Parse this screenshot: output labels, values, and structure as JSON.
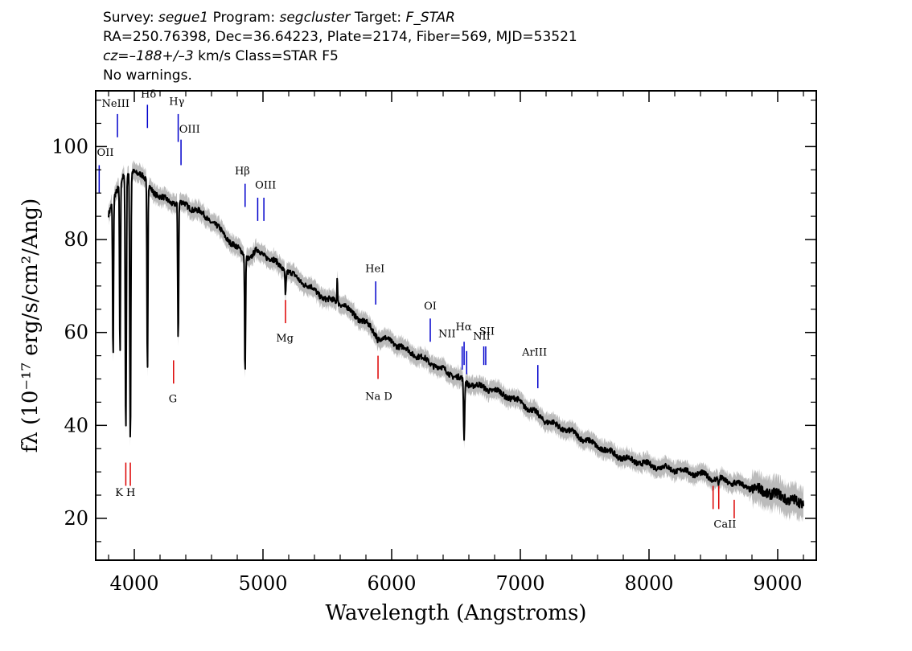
{
  "header": {
    "line1": {
      "survey_label": "Survey:",
      "survey": "segue1",
      "program_label": "Program:",
      "program": "segcluster",
      "target_label": "Target:",
      "target": "F_STAR"
    },
    "line2": "RA=250.76398, Dec=36.64223, Plate=2174, Fiber=569, MJD=53521",
    "line3": {
      "cz": "cz=–188+/–3",
      "rest": " km/s Class=STAR F5"
    },
    "line4": "No warnings."
  },
  "chart_data": {
    "type": "line",
    "title": "",
    "xlabel": "Wavelength (Angstroms)",
    "ylabel": "fλ (10⁻¹⁷ erg/s/cm²/Ang)",
    "xlim": [
      3700,
      9300
    ],
    "ylim": [
      11,
      112
    ],
    "x_ticks": [
      4000,
      5000,
      6000,
      7000,
      8000,
      9000
    ],
    "y_ticks": [
      20,
      40,
      60,
      80,
      100
    ],
    "grid": false,
    "colors": {
      "spectrum": "#000000",
      "error_band": "#bbbbbb",
      "emission": "#0000cc",
      "absorption": "#dd0000"
    },
    "continuum": {
      "x": [
        3800,
        3850,
        3900,
        3950,
        4000,
        4050,
        4100,
        4200,
        4300,
        4400,
        4500,
        4600,
        4700,
        4800,
        4850,
        4900,
        4950,
        5000,
        5100,
        5200,
        5300,
        5400,
        5500,
        5600,
        5700,
        5800,
        5900,
        6000,
        6200,
        6400,
        6600,
        6800,
        7000,
        7200,
        7400,
        7600,
        7800,
        8000,
        8200,
        8400,
        8600,
        8800,
        9000,
        9200
      ],
      "y": [
        85,
        90,
        93,
        94,
        95,
        94,
        92,
        89,
        88,
        87.5,
        86,
        84,
        81,
        78,
        77,
        76,
        77.5,
        77,
        75,
        73,
        71,
        69,
        67,
        66.5,
        64,
        62,
        59,
        58,
        55,
        52,
        49,
        47.5,
        45,
        41,
        38.5,
        35.5,
        33,
        31.5,
        30.5,
        29.5,
        28,
        26.5,
        25,
        23
      ]
    },
    "absorption_features": [
      {
        "x": 3835,
        "y": 54
      },
      {
        "x": 3889,
        "y": 55
      },
      {
        "x": 3934,
        "y": 38
      },
      {
        "x": 3969,
        "y": 36
      },
      {
        "x": 4102,
        "y": 51
      },
      {
        "x": 4341,
        "y": 58
      },
      {
        "x": 4861,
        "y": 51
      },
      {
        "x": 5175,
        "y": 68
      },
      {
        "x": 5890,
        "y": 58
      },
      {
        "x": 6563,
        "y": 37
      },
      {
        "x": 8498,
        "y": 28
      },
      {
        "x": 8542,
        "y": 27
      },
      {
        "x": 8662,
        "y": 28
      }
    ],
    "spikes": [
      {
        "x": 5577,
        "y": 73
      }
    ],
    "emission_lines": [
      {
        "label": "OII",
        "x": 3727,
        "y0": 90,
        "y1": 96
      },
      {
        "label": "NeIII",
        "x": 3869,
        "y0": 102,
        "y1": 107
      },
      {
        "label": "Hδ",
        "x": 4102,
        "y0": 104,
        "y1": 109
      },
      {
        "label": "Hγ",
        "x": 4341,
        "y0": 101,
        "y1": 107
      },
      {
        "label": "OIII",
        "x": 4363,
        "y0": 96,
        "y1": 101.5
      },
      {
        "label": "Hβ",
        "x": 4861,
        "y0": 87,
        "y1": 92
      },
      {
        "label": "OIII",
        "x": 4959,
        "y0": 84,
        "y1": 89
      },
      {
        "label": "OIII",
        "x": 5007,
        "y0": 84,
        "y1": 89
      },
      {
        "label": "HeI",
        "x": 5876,
        "y0": 66,
        "y1": 71
      },
      {
        "label": "OI",
        "x": 6300,
        "y0": 58,
        "y1": 63
      },
      {
        "label": "NII",
        "x": 6548,
        "y0": 52,
        "y1": 57
      },
      {
        "label": "Hα",
        "x": 6563,
        "y0": 53,
        "y1": 58
      },
      {
        "label": "NII",
        "x": 6583,
        "y0": 51,
        "y1": 56
      },
      {
        "label": "SII",
        "x": 6716,
        "y0": 53,
        "y1": 57
      },
      {
        "label": "SII",
        "x": 6731,
        "y0": 53,
        "y1": 57
      },
      {
        "label": "ArIII",
        "x": 7136,
        "y0": 48,
        "y1": 53
      }
    ],
    "absorption_lines": [
      {
        "label": "K",
        "x": 3934,
        "y0": 27,
        "y1": 32
      },
      {
        "label": "H",
        "x": 3969,
        "y0": 27,
        "y1": 32
      },
      {
        "label": "G",
        "x": 4305,
        "y0": 49,
        "y1": 54
      },
      {
        "label": "Mg",
        "x": 5175,
        "y0": 62,
        "y1": 67
      },
      {
        "label": "Na D",
        "x": 5894,
        "y0": 50,
        "y1": 55
      },
      {
        "label": "CaII",
        "x": 8498,
        "y0": 22,
        "y1": 27
      },
      {
        "label": "CaII",
        "x": 8542,
        "y0": 22,
        "y1": 27
      },
      {
        "label": "CaII",
        "x": 8662,
        "y0": 20,
        "y1": 24
      }
    ],
    "line_labels": [
      {
        "text": "OII",
        "x": 3727,
        "y": 98
      },
      {
        "text": "NeIII",
        "x": 3855,
        "y": 108.5
      },
      {
        "text": "Hδ",
        "x": 4110,
        "y": 110.5
      },
      {
        "text": "Hγ",
        "x": 4330,
        "y": 109
      },
      {
        "text": "OIII",
        "x": 4430,
        "y": 103
      },
      {
        "text": "Hβ",
        "x": 4840,
        "y": 94
      },
      {
        "text": "OIII",
        "x": 5020,
        "y": 91
      },
      {
        "text": "HeI",
        "x": 5870,
        "y": 73
      },
      {
        "text": "OI",
        "x": 6300,
        "y": 65
      },
      {
        "text": "NII",
        "x": 6430,
        "y": 59
      },
      {
        "text": "Hα",
        "x": 6560,
        "y": 60.5
      },
      {
        "text": "NII",
        "x": 6700,
        "y": 58.5
      },
      {
        "text": "SII",
        "x": 6740,
        "y": 59.5
      },
      {
        "text": "ArIII",
        "x": 7110,
        "y": 55
      },
      {
        "text": "Mg",
        "x": 5170,
        "y": 58
      },
      {
        "text": "Na  D",
        "x": 5900,
        "y": 45.5
      },
      {
        "text": "G",
        "x": 4300,
        "y": 45
      },
      {
        "text": "K H",
        "x": 3930,
        "y": 24.8
      },
      {
        "text": "CaII",
        "x": 8590,
        "y": 18
      }
    ]
  }
}
